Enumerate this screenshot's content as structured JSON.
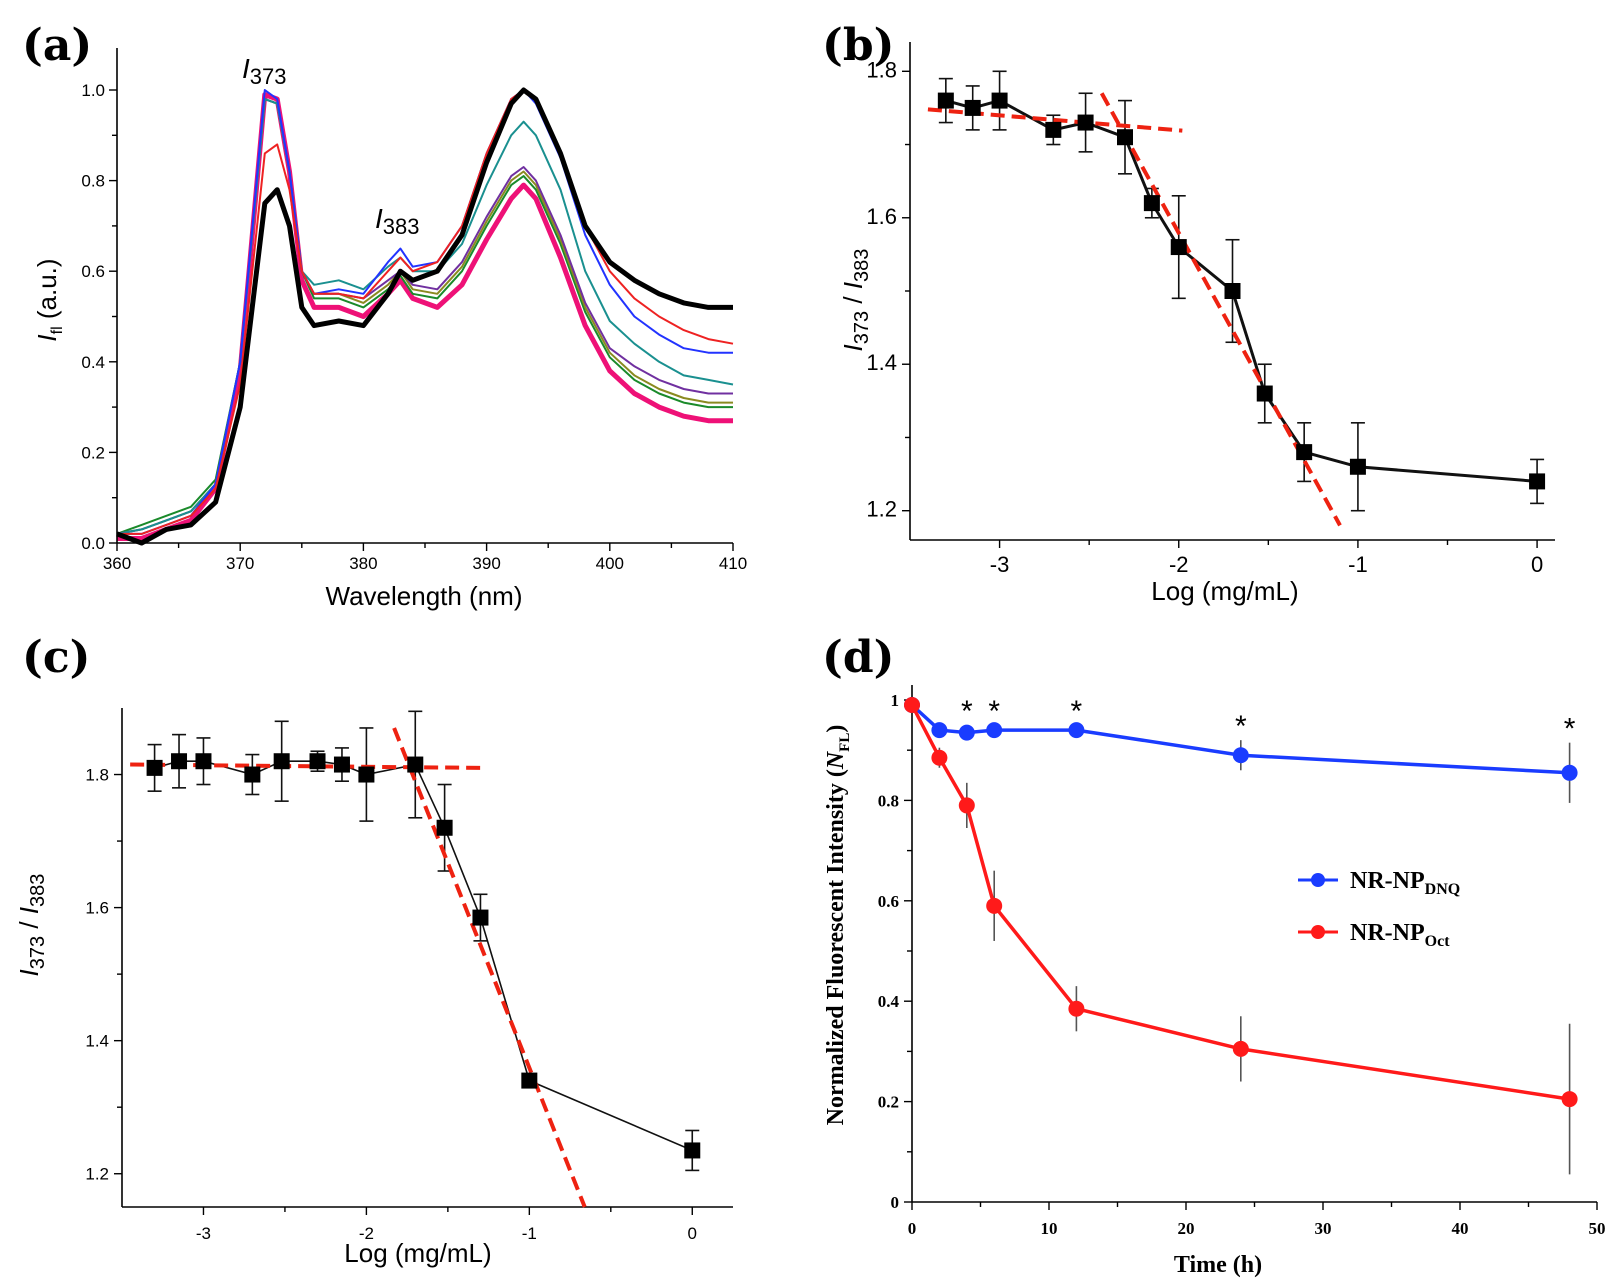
{
  "chart_data": [
    {
      "id": "a",
      "panel_label": "(a)",
      "type": "line",
      "xlabel": "Wavelength (nm)",
      "ylabel": {
        "main": "I",
        "sub": "fl",
        "rest": " (a.u.)"
      },
      "xlim": [
        360,
        410
      ],
      "ylim": [
        0,
        1.05
      ],
      "xticks": [
        "360",
        "370",
        "380",
        "390",
        "400",
        "410"
      ],
      "yticks": [
        "0.0",
        "0.2",
        "0.4",
        "0.6",
        "0.8",
        "1.0"
      ],
      "annotations": [
        {
          "main": "I",
          "sub": "373",
          "x": 372.5,
          "y": 1.04
        },
        {
          "main": "I",
          "sub": "383",
          "x": 383,
          "y": 0.69
        }
      ],
      "x": [
        360,
        362,
        364,
        366,
        368,
        370,
        372,
        373,
        374,
        375,
        376,
        378,
        380,
        382,
        383,
        384,
        386,
        388,
        390,
        392,
        393,
        394,
        396,
        398,
        400,
        402,
        404,
        406,
        408,
        410
      ],
      "series": [
        {
          "name": "black",
          "color": "#000000",
          "width": 5,
          "values": [
            0.02,
            0.0,
            0.03,
            0.04,
            0.09,
            0.3,
            0.75,
            0.78,
            0.7,
            0.52,
            0.48,
            0.49,
            0.48,
            0.55,
            0.6,
            0.58,
            0.6,
            0.68,
            0.84,
            0.97,
            1.0,
            0.98,
            0.86,
            0.7,
            0.62,
            0.58,
            0.55,
            0.53,
            0.52,
            0.52
          ]
        },
        {
          "name": "red",
          "color": "#ee2222",
          "width": 2,
          "values": [
            0.02,
            0.02,
            0.04,
            0.06,
            0.12,
            0.35,
            0.86,
            0.88,
            0.78,
            0.6,
            0.55,
            0.55,
            0.54,
            0.6,
            0.63,
            0.6,
            0.62,
            0.7,
            0.86,
            0.98,
            1.0,
            0.98,
            0.86,
            0.7,
            0.6,
            0.54,
            0.5,
            0.47,
            0.45,
            0.44
          ]
        },
        {
          "name": "blue",
          "color": "#2233ff",
          "width": 2,
          "values": [
            0.02,
            0.02,
            0.04,
            0.06,
            0.13,
            0.4,
            1.0,
            0.98,
            0.82,
            0.6,
            0.55,
            0.56,
            0.55,
            0.62,
            0.65,
            0.61,
            0.62,
            0.7,
            0.86,
            0.98,
            1.0,
            0.97,
            0.85,
            0.68,
            0.57,
            0.5,
            0.46,
            0.43,
            0.42,
            0.42
          ]
        },
        {
          "name": "teal",
          "color": "#1a9090",
          "width": 2,
          "values": [
            0.02,
            0.03,
            0.05,
            0.07,
            0.13,
            0.4,
            0.98,
            0.97,
            0.82,
            0.6,
            0.57,
            0.58,
            0.56,
            0.61,
            0.63,
            0.6,
            0.6,
            0.66,
            0.79,
            0.9,
            0.93,
            0.9,
            0.78,
            0.6,
            0.49,
            0.44,
            0.4,
            0.37,
            0.36,
            0.35
          ]
        },
        {
          "name": "purple",
          "color": "#7030a0",
          "width": 2,
          "values": [
            0.02,
            0.03,
            0.05,
            0.07,
            0.13,
            0.4,
            0.98,
            0.97,
            0.82,
            0.6,
            0.55,
            0.55,
            0.54,
            0.58,
            0.6,
            0.57,
            0.56,
            0.62,
            0.72,
            0.81,
            0.83,
            0.8,
            0.68,
            0.53,
            0.43,
            0.39,
            0.36,
            0.34,
            0.33,
            0.33
          ]
        },
        {
          "name": "olive",
          "color": "#8a8a20",
          "width": 2,
          "values": [
            0.02,
            0.03,
            0.05,
            0.07,
            0.13,
            0.4,
            0.98,
            0.97,
            0.82,
            0.6,
            0.55,
            0.55,
            0.53,
            0.57,
            0.6,
            0.56,
            0.55,
            0.61,
            0.71,
            0.8,
            0.82,
            0.79,
            0.67,
            0.52,
            0.42,
            0.37,
            0.34,
            0.32,
            0.31,
            0.31
          ]
        },
        {
          "name": "green",
          "color": "#1a8a2a",
          "width": 2,
          "values": [
            0.02,
            0.04,
            0.06,
            0.08,
            0.14,
            0.4,
            0.98,
            0.97,
            0.82,
            0.6,
            0.54,
            0.54,
            0.52,
            0.56,
            0.59,
            0.55,
            0.54,
            0.6,
            0.7,
            0.79,
            0.81,
            0.78,
            0.66,
            0.51,
            0.41,
            0.36,
            0.33,
            0.31,
            0.3,
            0.3
          ]
        },
        {
          "name": "magenta",
          "color": "#ee1177",
          "width": 5,
          "values": [
            0.01,
            0.01,
            0.03,
            0.05,
            0.12,
            0.38,
            0.99,
            0.98,
            0.82,
            0.58,
            0.52,
            0.52,
            0.5,
            0.55,
            0.58,
            0.54,
            0.52,
            0.57,
            0.67,
            0.76,
            0.79,
            0.76,
            0.63,
            0.48,
            0.38,
            0.33,
            0.3,
            0.28,
            0.27,
            0.27
          ]
        }
      ]
    },
    {
      "id": "b",
      "panel_label": "(b)",
      "type": "scatter",
      "xlabel": "Log (mg/mL)",
      "ylabel": {
        "a": "I",
        "asub": "373",
        "sep": " / ",
        "b": "I",
        "bsub": "383"
      },
      "xlim": [
        -3.5,
        0.1
      ],
      "ylim": [
        1.16,
        1.84
      ],
      "xticks": [
        {
          "v": -3,
          "label": "-3"
        },
        {
          "v": -2,
          "label": "-2"
        },
        {
          "v": -1,
          "label": "-1"
        },
        {
          "v": 0,
          "label": "0"
        }
      ],
      "yticks": [
        {
          "v": 1.2,
          "label": "1.2"
        },
        {
          "v": 1.4,
          "label": "1.4"
        },
        {
          "v": 1.6,
          "label": "1.6"
        },
        {
          "v": 1.8,
          "label": "1.8"
        }
      ],
      "x": [
        -3.3,
        -3.15,
        -3.0,
        -2.7,
        -2.52,
        -2.3,
        -2.15,
        -2.0,
        -1.7,
        -1.52,
        -1.3,
        -1.0,
        0.0
      ],
      "y": [
        1.76,
        1.75,
        1.76,
        1.72,
        1.73,
        1.71,
        1.62,
        1.56,
        1.5,
        1.36,
        1.28,
        1.26,
        1.24
      ],
      "yerr": [
        0.03,
        0.03,
        0.04,
        0.02,
        0.04,
        0.05,
        0.02,
        0.07,
        0.07,
        0.04,
        0.04,
        0.06,
        0.03
      ],
      "fit_lines": [
        {
          "x1": -3.4,
          "y1": 1.748,
          "x2": -1.98,
          "y2": 1.719
        },
        {
          "x1": -2.43,
          "y1": 1.77,
          "x2": -1.1,
          "y2": 1.18
        }
      ]
    },
    {
      "id": "c",
      "panel_label": "(c)",
      "type": "scatter",
      "xlabel": "Log (mg/mL)",
      "ylabel": {
        "a": "I",
        "asub": "373",
        "sep": " / ",
        "b": "I",
        "bsub": "383"
      },
      "xlim": [
        -3.5,
        0.25
      ],
      "ylim": [
        1.15,
        1.9
      ],
      "xticks": [
        {
          "v": -3,
          "label": "-3"
        },
        {
          "v": -2,
          "label": "-2"
        },
        {
          "v": -1,
          "label": "-1"
        },
        {
          "v": 0,
          "label": "0"
        }
      ],
      "yticks": [
        {
          "v": 1.2,
          "label": "1.2"
        },
        {
          "v": 1.4,
          "label": "1.4"
        },
        {
          "v": 1.6,
          "label": "1.6"
        },
        {
          "v": 1.8,
          "label": "1.8"
        }
      ],
      "x": [
        -3.3,
        -3.15,
        -3.0,
        -2.7,
        -2.52,
        -2.3,
        -2.15,
        -2.0,
        -1.7,
        -1.52,
        -1.3,
        -1.0,
        0.0
      ],
      "y": [
        1.81,
        1.82,
        1.82,
        1.8,
        1.82,
        1.82,
        1.815,
        1.8,
        1.815,
        1.72,
        1.585,
        1.34,
        1.235
      ],
      "yerr": [
        0.035,
        0.04,
        0.035,
        0.03,
        0.06,
        0.015,
        0.025,
        0.07,
        0.08,
        0.065,
        0.035,
        0.0,
        0.03
      ],
      "fit_lines": [
        {
          "x1": -3.45,
          "y1": 1.815,
          "x2": -1.3,
          "y2": 1.81
        },
        {
          "x1": -1.83,
          "y1": 1.87,
          "x2": -0.66,
          "y2": 1.15
        }
      ]
    },
    {
      "id": "d",
      "panel_label": "(d)",
      "type": "line",
      "xlabel": "Time (h)",
      "ylabel": {
        "main": "Normalized Fluorescent Intensity (",
        "italic": "N",
        "sub": "FL",
        "rest": ")"
      },
      "xlim": [
        0,
        50
      ],
      "ylim": [
        0,
        1.0
      ],
      "xticks": [
        {
          "v": 0,
          "label": "0"
        },
        {
          "v": 10,
          "label": "10"
        },
        {
          "v": 20,
          "label": "20"
        },
        {
          "v": 30,
          "label": "30"
        },
        {
          "v": 40,
          "label": "40"
        },
        {
          "v": 50,
          "label": "50"
        }
      ],
      "yticks": [
        {
          "v": 0,
          "label": "0"
        },
        {
          "v": 0.2,
          "label": "0.2"
        },
        {
          "v": 0.4,
          "label": "0.4"
        },
        {
          "v": 0.6,
          "label": "0.6"
        },
        {
          "v": 0.8,
          "label": "0.8"
        },
        {
          "v": 1.0,
          "label": "1"
        }
      ],
      "x": [
        0,
        2,
        4,
        6,
        12,
        24,
        48
      ],
      "series": [
        {
          "name": "NR-NP",
          "sub": "DNQ",
          "color": "#1a3cff",
          "values": [
            0.99,
            0.94,
            0.935,
            0.94,
            0.94,
            0.89,
            0.855
          ],
          "yerr": [
            0.01,
            0.01,
            0.015,
            0.01,
            0.01,
            0.03,
            0.06
          ]
        },
        {
          "name": "NR-NP",
          "sub": "Oct",
          "color": "#ff1a1a",
          "values": [
            0.99,
            0.885,
            0.79,
            0.59,
            0.385,
            0.305,
            0.205
          ],
          "yerr": [
            0.01,
            0.02,
            0.045,
            0.07,
            0.045,
            0.065,
            0.15
          ]
        }
      ],
      "significance": {
        "symbol": "*",
        "x": [
          4,
          6,
          12,
          24,
          48
        ]
      }
    }
  ]
}
